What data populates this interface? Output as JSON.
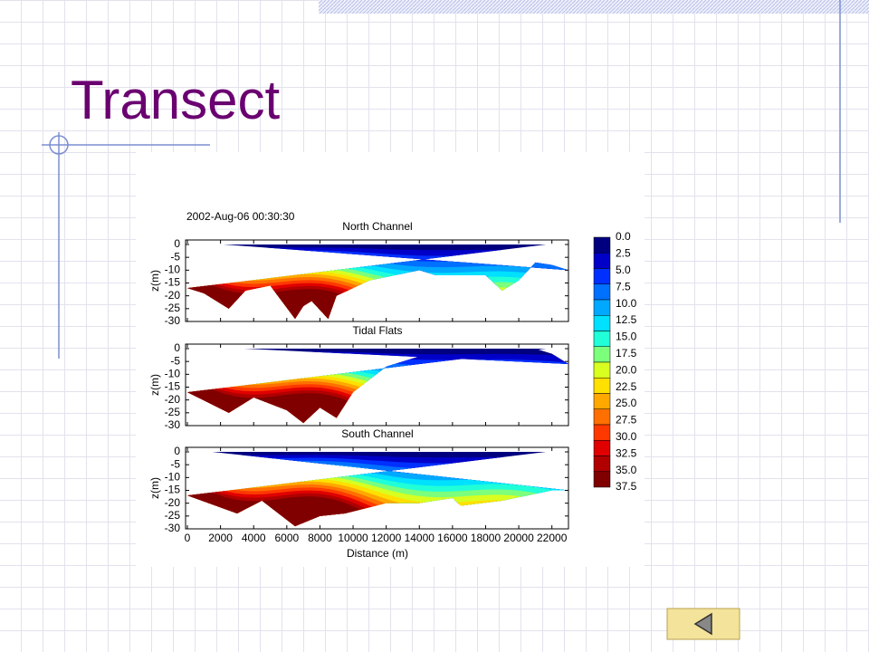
{
  "slide": {
    "title": "Transect"
  },
  "figure": {
    "timestamp": "2002-Aug-06 00:30:30",
    "panels": [
      {
        "title": "North Channel"
      },
      {
        "title": "Tidal Flats"
      },
      {
        "title": "South Channel"
      }
    ],
    "y_label": "z(m)",
    "yticks": [
      "0",
      "-5",
      "-10",
      "-15",
      "-20",
      "-25",
      "-30"
    ],
    "x_label": "Distance (m)",
    "xticks": [
      "0",
      "2000",
      "4000",
      "6000",
      "8000",
      "10000",
      "12000",
      "14000",
      "16000",
      "18000",
      "20000",
      "22000"
    ],
    "colorbar": [
      "0.0",
      "2.5",
      "5.0",
      "7.5",
      "10.0",
      "12.5",
      "15.0",
      "17.5",
      "20.0",
      "22.5",
      "25.0",
      "27.5",
      "30.0",
      "32.5",
      "35.0",
      "37.5"
    ]
  }
}
